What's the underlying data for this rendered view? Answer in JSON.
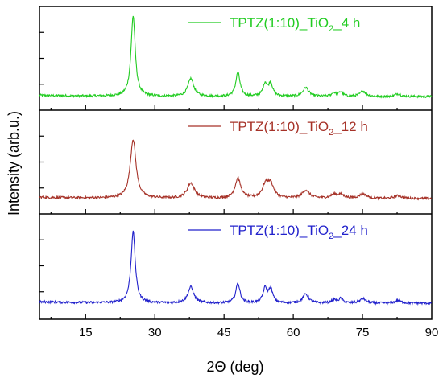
{
  "chart_data": {
    "type": "line",
    "xlabel": "2Θ (deg)",
    "ylabel": "Intensity (arb.u.)",
    "xlim": [
      5,
      90
    ],
    "xticks": [
      15,
      30,
      45,
      60,
      75,
      90
    ],
    "xtick_labels": [
      "15",
      "30",
      "45",
      "60",
      "75",
      "90"
    ],
    "grid": false,
    "legend_placement": "top-right of each panel",
    "panels": [
      {
        "name": "TPTZ(1:10)_TiO2_4 h",
        "legend": {
          "main": "TPTZ(1:10)_TiO",
          "sub": "2",
          "suffix": "_4 h"
        },
        "color": "#22cc22",
        "baseline": 0.08,
        "peaks": [
          {
            "x": 25.3,
            "h": 0.9,
            "w": 0.55
          },
          {
            "x": 37.8,
            "h": 0.2,
            "w": 0.75
          },
          {
            "x": 48.0,
            "h": 0.27,
            "w": 0.55
          },
          {
            "x": 53.9,
            "h": 0.14,
            "w": 0.55
          },
          {
            "x": 55.1,
            "h": 0.14,
            "w": 0.55
          },
          {
            "x": 62.7,
            "h": 0.1,
            "w": 0.75
          },
          {
            "x": 68.8,
            "h": 0.04,
            "w": 0.55
          },
          {
            "x": 70.3,
            "h": 0.05,
            "w": 0.55
          },
          {
            "x": 75.1,
            "h": 0.06,
            "w": 0.75
          },
          {
            "x": 82.7,
            "h": 0.03,
            "w": 0.75
          }
        ]
      },
      {
        "name": "TPTZ(1:10)_TiO2_12 h",
        "legend": {
          "main": "TPTZ(1:10)_TiO",
          "sub": "2",
          "suffix": "_12 h"
        },
        "color": "#a63228",
        "baseline": 0.1,
        "peaks": [
          {
            "x": 25.3,
            "h": 0.66,
            "w": 0.75
          },
          {
            "x": 37.8,
            "h": 0.17,
            "w": 0.95
          },
          {
            "x": 48.0,
            "h": 0.22,
            "w": 0.75
          },
          {
            "x": 54.0,
            "h": 0.14,
            "w": 0.85
          },
          {
            "x": 55.1,
            "h": 0.14,
            "w": 0.85
          },
          {
            "x": 62.7,
            "h": 0.09,
            "w": 0.95
          },
          {
            "x": 68.8,
            "h": 0.04,
            "w": 0.85
          },
          {
            "x": 70.3,
            "h": 0.04,
            "w": 0.85
          },
          {
            "x": 75.1,
            "h": 0.05,
            "w": 0.95
          },
          {
            "x": 82.7,
            "h": 0.03,
            "w": 0.95
          }
        ]
      },
      {
        "name": "TPTZ(1:10)_TiO2_24 h",
        "legend": {
          "main": "TPTZ(1:10)_TiO",
          "sub": "2",
          "suffix": "_24 h"
        },
        "color": "#2222cc",
        "baseline": 0.09,
        "peaks": [
          {
            "x": 25.3,
            "h": 0.8,
            "w": 0.55
          },
          {
            "x": 37.8,
            "h": 0.18,
            "w": 0.75
          },
          {
            "x": 48.0,
            "h": 0.22,
            "w": 0.55
          },
          {
            "x": 53.9,
            "h": 0.16,
            "w": 0.55
          },
          {
            "x": 55.1,
            "h": 0.15,
            "w": 0.55
          },
          {
            "x": 62.7,
            "h": 0.1,
            "w": 0.75
          },
          {
            "x": 68.8,
            "h": 0.04,
            "w": 0.55
          },
          {
            "x": 70.3,
            "h": 0.05,
            "w": 0.55
          },
          {
            "x": 75.1,
            "h": 0.05,
            "w": 0.75
          },
          {
            "x": 82.7,
            "h": 0.03,
            "w": 0.75
          }
        ]
      }
    ]
  }
}
